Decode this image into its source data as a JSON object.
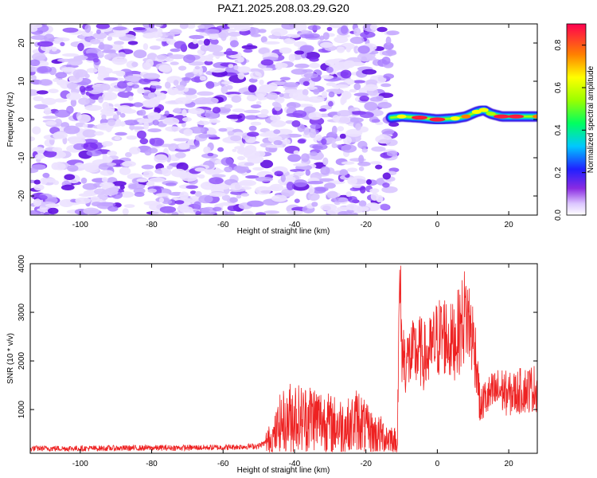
{
  "title": "PAZ1.2025.208.03.29.G20",
  "chart_data": [
    {
      "type": "heatmap",
      "xlabel": "Height of straight line (km)",
      "ylabel": "Frequency (Hz)",
      "xlim": [
        -114,
        28
      ],
      "ylim": [
        -25,
        25
      ],
      "xticks": [
        "-100",
        "-80",
        "-60",
        "-40",
        "-20",
        "0",
        "20"
      ],
      "yticks": [
        "-20",
        "-10",
        "0",
        "10",
        "20"
      ],
      "noise_extent_km": [
        -114,
        -12
      ],
      "ridge": {
        "x": [
          -13,
          -10,
          -5,
          0,
          5,
          8,
          11,
          13,
          15,
          18,
          22,
          28
        ],
        "y": [
          0.5,
          0.8,
          0.5,
          0.0,
          0.3,
          0.8,
          2.0,
          2.5,
          1.5,
          0.8,
          0.8,
          0.8
        ],
        "peak_amplitude": [
          0.35,
          0.6,
          0.9,
          0.85,
          0.6,
          0.7,
          0.6,
          0.55,
          0.5,
          0.85,
          0.9,
          0.7
        ]
      },
      "colorbar": {
        "label": "Normalized spectral amplitude",
        "range": [
          0,
          0.9
        ],
        "ticks": [
          "0.0",
          "0.2",
          "0.4",
          "0.6",
          "0.8"
        ]
      }
    },
    {
      "type": "line",
      "xlabel": "Height of straight line (km)",
      "ylabel": "SNR (10 * v/v)",
      "xlim": [
        -114,
        28
      ],
      "ylim": [
        100,
        4000
      ],
      "xticks": [
        "-100",
        "-80",
        "-60",
        "-40",
        "-20",
        "0",
        "20"
      ],
      "yticks": [
        "1000",
        "2000",
        "3000",
        "4000"
      ],
      "series": [
        {
          "color": "#ee2222",
          "x": [
            -114,
            -100,
            -80,
            -60,
            -50,
            -46,
            -44,
            -40,
            -38,
            -35,
            -30,
            -25,
            -22,
            -20,
            -18,
            -15,
            -13,
            -11.2,
            -10.5,
            -10,
            -9,
            -7,
            -5,
            -3,
            0,
            2,
            4,
            6,
            8,
            9,
            10,
            11,
            12,
            13,
            14,
            16,
            18,
            20,
            24,
            28
          ],
          "y": [
            200,
            200,
            210,
            220,
            250,
            400,
            700,
            900,
            800,
            850,
            700,
            650,
            800,
            600,
            500,
            450,
            400,
            300,
            3700,
            2300,
            2000,
            2100,
            2200,
            2050,
            2450,
            2550,
            2350,
            2600,
            3000,
            2750,
            2450,
            2000,
            1000,
            1200,
            1250,
            1350,
            1400,
            1300,
            1400,
            1450
          ]
        }
      ]
    }
  ]
}
